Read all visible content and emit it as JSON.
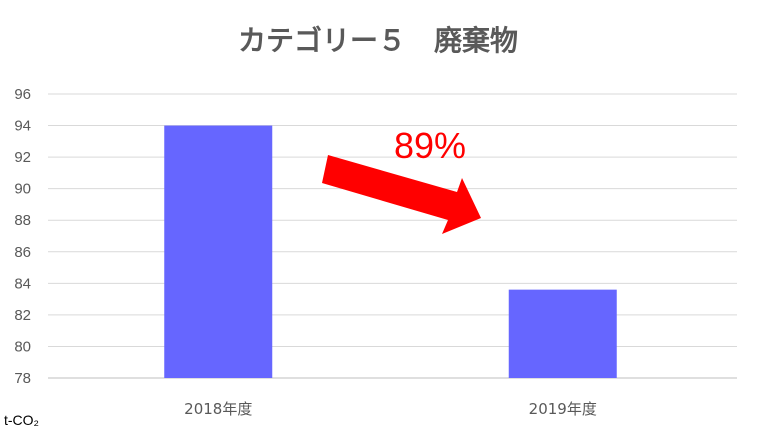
{
  "chart_data": {
    "type": "bar",
    "title": "カテゴリー５　廃棄物",
    "categories": [
      "2018年度",
      "2019年度"
    ],
    "values": [
      94.0,
      83.6
    ],
    "ylim": [
      78,
      96
    ],
    "yticks": [
      78,
      80,
      82,
      84,
      86,
      88,
      90,
      92,
      94,
      96
    ],
    "ylabel": "t-CO₂",
    "grid": true,
    "bar_color": "#6666ff",
    "annotation": {
      "text": "89%",
      "color": "#ff0000",
      "shape": "arrow-down-right"
    }
  }
}
